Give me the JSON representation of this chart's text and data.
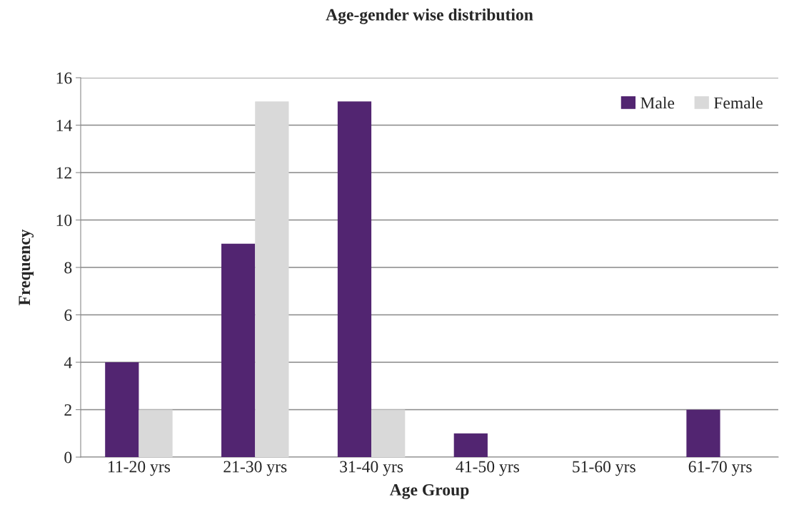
{
  "chart_data": {
    "type": "bar",
    "title": "Age-gender wise distribution",
    "xlabel": "Age Group",
    "ylabel": "Frequency",
    "categories": [
      "11-20 yrs",
      "21-30 yrs",
      "31-40 yrs",
      "41-50 yrs",
      "51-60 yrs",
      "61-70 yrs"
    ],
    "series": [
      {
        "name": "Male",
        "color": "#522571",
        "values": [
          4,
          9,
          15,
          1,
          0,
          2
        ]
      },
      {
        "name": "Female",
        "color": "#d9d9d9",
        "values": [
          2,
          15,
          2,
          0,
          0,
          0
        ]
      }
    ],
    "ylim": [
      0,
      16
    ],
    "yticks": [
      0,
      2,
      4,
      6,
      8,
      10,
      12,
      14,
      16
    ],
    "grid": "y",
    "legend": "top right"
  }
}
